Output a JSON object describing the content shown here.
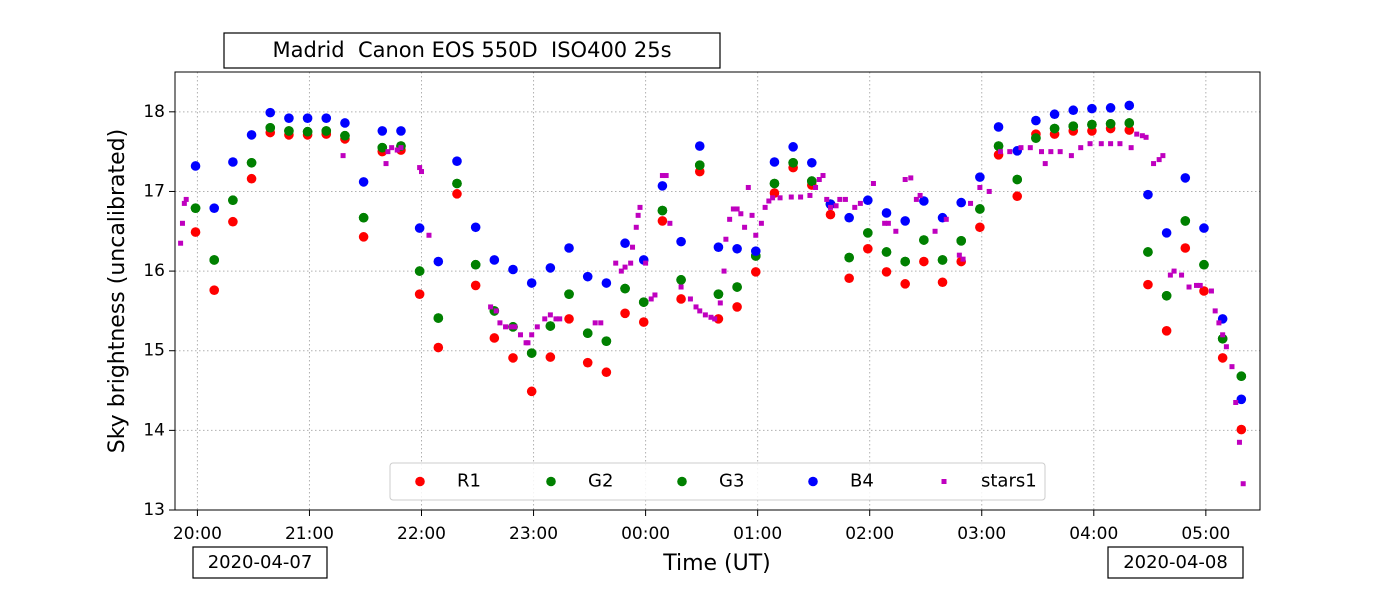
{
  "chart_data": {
    "type": "scatter",
    "title": "Madrid  Canon EOS 550D  ISO400 25s",
    "x_label": "Time (UT)",
    "y_label": "Sky brightness (uncalibrated)",
    "annotations": [
      "2020-04-07",
      "2020-04-08"
    ],
    "xlim": [
      "19:48",
      "05:29"
    ],
    "xticks": [
      "20:00",
      "21:00",
      "22:00",
      "23:00",
      "00:00",
      "01:00",
      "02:00",
      "03:00",
      "04:00",
      "05:00"
    ],
    "ylim": [
      13,
      18.5
    ],
    "yticks": [
      13,
      14,
      15,
      16,
      17,
      18
    ],
    "grid": true,
    "legend": "lower center",
    "x": [
      "19:59",
      "20:09",
      "20:19",
      "20:29",
      "20:39",
      "20:49",
      "20:59",
      "21:09",
      "21:19",
      "21:29",
      "21:39",
      "21:49",
      "21:59",
      "22:09",
      "22:19",
      "22:29",
      "22:39",
      "22:49",
      "22:59",
      "23:09",
      "23:19",
      "23:29",
      "23:39",
      "23:49",
      "23:59",
      "00:09",
      "00:19",
      "00:29",
      "00:39",
      "00:49",
      "00:59",
      "01:09",
      "01:19",
      "01:29",
      "01:39",
      "01:49",
      "01:59",
      "02:09",
      "02:19",
      "02:29",
      "02:39",
      "02:49",
      "02:59",
      "03:09",
      "03:19",
      "03:29",
      "03:39",
      "03:49",
      "03:59",
      "04:09",
      "04:19",
      "04:29",
      "04:39",
      "04:49",
      "04:59",
      "05:09",
      "05:19"
    ],
    "series": [
      {
        "name": "R1",
        "color": "#ff0000",
        "marker": "circle",
        "values": [
          16.49,
          15.76,
          16.62,
          17.16,
          17.74,
          17.71,
          17.71,
          17.72,
          17.66,
          16.43,
          17.5,
          17.52,
          15.71,
          15.04,
          16.97,
          15.82,
          15.16,
          14.91,
          14.49,
          14.92,
          15.4,
          14.85,
          14.73,
          15.47,
          15.36,
          16.63,
          15.65,
          17.25,
          15.4,
          15.55,
          15.99,
          16.98,
          17.3,
          17.08,
          16.71,
          15.91,
          16.28,
          15.99,
          15.84,
          16.12,
          15.86,
          16.12,
          16.55,
          17.46,
          16.94,
          17.72,
          17.72,
          17.76,
          17.76,
          17.79,
          17.77,
          15.83,
          15.25,
          16.29,
          15.75,
          14.91,
          14.01
        ]
      },
      {
        "name": "G2",
        "color": "#008000",
        "marker": "circle",
        "values": [
          16.79,
          16.14,
          16.89,
          17.36,
          17.8,
          17.76,
          17.75,
          17.76,
          17.7,
          16.67,
          17.55,
          17.57,
          16.0,
          15.41,
          17.1,
          16.08,
          15.5,
          15.3,
          14.97,
          15.31,
          15.71,
          15.22,
          15.12,
          15.78,
          15.61,
          16.76,
          15.89,
          17.33,
          15.71,
          15.8,
          16.19,
          17.1,
          17.36,
          17.13,
          16.84,
          16.17,
          16.48,
          16.24,
          16.12,
          16.39,
          16.14,
          16.38,
          16.78,
          17.57,
          17.15,
          17.67,
          17.79,
          17.82,
          17.84,
          17.85,
          17.86,
          16.24,
          15.69,
          16.63,
          16.08,
          15.15,
          14.68
        ]
      },
      {
        "name": "G3",
        "color": "#008000",
        "marker": "circle",
        "values": [
          16.79,
          16.14,
          16.89,
          17.36,
          17.8,
          17.76,
          17.75,
          17.76,
          17.7,
          16.67,
          17.55,
          17.57,
          16.0,
          15.41,
          17.1,
          16.08,
          15.5,
          15.3,
          14.97,
          15.31,
          15.71,
          15.22,
          15.12,
          15.78,
          15.61,
          16.76,
          15.89,
          17.33,
          15.71,
          15.8,
          16.19,
          17.1,
          17.36,
          17.13,
          16.84,
          16.17,
          16.48,
          16.24,
          16.12,
          16.39,
          16.14,
          16.38,
          16.78,
          17.57,
          17.15,
          17.67,
          17.79,
          17.82,
          17.84,
          17.85,
          17.86,
          16.24,
          15.69,
          16.63,
          16.08,
          15.15,
          14.68
        ]
      },
      {
        "name": "B4",
        "color": "#0000ff",
        "marker": "circle",
        "values": [
          17.32,
          16.79,
          17.37,
          17.71,
          17.99,
          17.92,
          17.92,
          17.92,
          17.86,
          17.12,
          17.76,
          17.76,
          16.54,
          16.12,
          17.38,
          16.55,
          16.14,
          16.02,
          15.85,
          16.04,
          16.29,
          15.93,
          15.85,
          16.35,
          16.14,
          17.07,
          16.37,
          17.57,
          16.3,
          16.28,
          16.25,
          17.37,
          17.56,
          17.36,
          16.84,
          16.67,
          16.89,
          16.73,
          16.63,
          16.88,
          16.67,
          16.86,
          17.18,
          17.81,
          17.51,
          17.89,
          17.97,
          18.02,
          18.04,
          18.05,
          18.08,
          16.96,
          16.48,
          17.17,
          16.54,
          15.4,
          14.39
        ]
      },
      {
        "name": "stars1",
        "color": "#bf00bf",
        "marker": "square",
        "x": [
          "19:51",
          "19:52",
          "19:53",
          "19:54",
          "21:18",
          "21:41",
          "21:42",
          "21:44",
          "21:47",
          "21:49",
          "21:59",
          "22:00",
          "22:04",
          "22:37",
          "22:40",
          "22:42",
          "22:45",
          "22:48",
          "22:50",
          "22:53",
          "22:56",
          "22:57",
          "22:59",
          "23:02",
          "23:06",
          "23:09",
          "23:12",
          "23:14",
          "23:33",
          "23:36",
          "23:44",
          "23:47",
          "23:49",
          "23:52",
          "23:53",
          "23:55",
          "23:56",
          "23:57",
          "00:00",
          "00:03",
          "00:05",
          "00:09",
          "00:11",
          "00:13",
          "00:19",
          "00:24",
          "00:27",
          "00:29",
          "00:32",
          "00:35",
          "00:37",
          "00:40",
          "00:42",
          "00:43",
          "00:45",
          "00:47",
          "00:49",
          "00:51",
          "00:53",
          "00:55",
          "00:57",
          "00:59",
          "01:02",
          "01:04",
          "01:06",
          "01:08",
          "01:12",
          "01:18",
          "01:23",
          "01:28",
          "01:31",
          "01:33",
          "01:35",
          "01:37",
          "01:39",
          "01:42",
          "01:44",
          "01:47",
          "01:52",
          "01:55",
          "02:02",
          "02:08",
          "02:10",
          "02:14",
          "02:19",
          "02:22",
          "02:25",
          "02:27",
          "02:35",
          "02:41",
          "02:48",
          "02:50",
          "02:54",
          "02:59",
          "03:04",
          "03:10",
          "03:15",
          "03:21",
          "03:26",
          "03:32",
          "03:34",
          "03:37",
          "03:42",
          "03:48",
          "03:53",
          "03:58",
          "04:04",
          "04:09",
          "04:14",
          "04:20",
          "04:23",
          "04:26",
          "04:28",
          "04:32",
          "04:35",
          "04:37",
          "04:41",
          "04:43",
          "04:47",
          "04:51",
          "04:55",
          "04:57",
          "05:03",
          "05:05",
          "05:07",
          "05:09",
          "05:11",
          "05:14",
          "05:16",
          "05:18",
          "05:20"
        ],
        "values": [
          16.35,
          16.6,
          16.85,
          16.9,
          17.45,
          17.35,
          17.5,
          17.55,
          17.52,
          17.55,
          17.3,
          17.25,
          16.45,
          15.55,
          15.5,
          15.35,
          15.3,
          15.3,
          15.3,
          15.2,
          15.1,
          15.1,
          15.2,
          15.3,
          15.4,
          15.45,
          15.4,
          15.4,
          15.35,
          15.35,
          16.1,
          16.0,
          16.05,
          16.1,
          16.3,
          16.55,
          16.7,
          16.8,
          16.1,
          15.65,
          15.7,
          17.2,
          17.2,
          16.6,
          15.8,
          15.65,
          15.55,
          15.5,
          15.45,
          15.42,
          15.4,
          15.6,
          16.0,
          16.4,
          16.65,
          16.78,
          16.78,
          16.72,
          16.55,
          17.05,
          16.7,
          16.45,
          16.6,
          16.8,
          16.88,
          16.92,
          16.92,
          16.93,
          16.93,
          16.95,
          17.05,
          17.15,
          17.2,
          16.9,
          16.8,
          16.82,
          16.9,
          16.9,
          16.8,
          16.85,
          17.1,
          16.6,
          16.6,
          16.5,
          17.15,
          17.17,
          16.9,
          16.95,
          16.5,
          16.65,
          16.2,
          16.15,
          16.85,
          17.05,
          17.0,
          17.5,
          17.5,
          17.55,
          17.55,
          17.5,
          17.35,
          17.5,
          17.5,
          17.45,
          17.55,
          17.6,
          17.6,
          17.6,
          17.6,
          17.55,
          17.72,
          17.7,
          17.68,
          17.35,
          17.4,
          17.45,
          15.95,
          16.0,
          15.95,
          15.8,
          15.82,
          15.82,
          15.75,
          15.5,
          15.35,
          15.2,
          15.05,
          14.8,
          14.35,
          13.85,
          13.33
        ]
      }
    ]
  }
}
